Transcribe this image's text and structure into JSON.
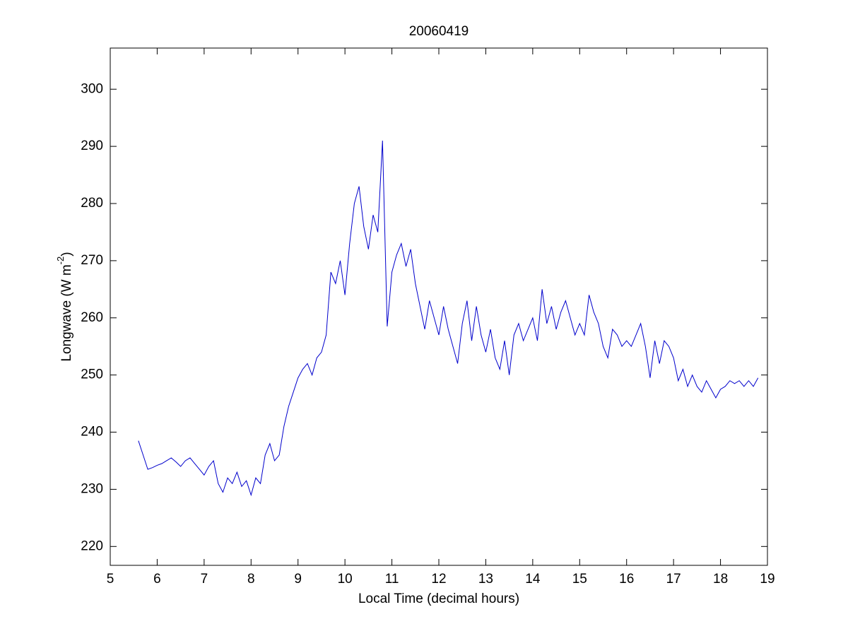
{
  "chart_data": {
    "type": "line",
    "title": "20060419",
    "x_label": "Local Time (decimal hours)",
    "y_label": [
      "Longwave (W m",
      "-2",
      ")"
    ],
    "color": "#0000cc",
    "xlim": [
      5,
      19
    ],
    "xticks": [
      5,
      6,
      7,
      8,
      9,
      10,
      11,
      12,
      13,
      14,
      15,
      16,
      17,
      18,
      19
    ],
    "ylim": [
      216.7,
      307.2
    ],
    "yticks": [
      220,
      230,
      240,
      250,
      260,
      270,
      280,
      290,
      300
    ],
    "x": [
      5.6,
      5.7,
      5.8,
      5.9,
      6.0,
      6.1,
      6.2,
      6.3,
      6.4,
      6.5,
      6.6,
      6.7,
      6.8,
      6.9,
      7.0,
      7.1,
      7.2,
      7.3,
      7.4,
      7.5,
      7.6,
      7.7,
      7.8,
      7.9,
      8.0,
      8.1,
      8.2,
      8.3,
      8.4,
      8.5,
      8.6,
      8.7,
      8.8,
      8.9,
      9.0,
      9.1,
      9.2,
      9.3,
      9.4,
      9.5,
      9.6,
      9.7,
      9.8,
      9.9,
      10.0,
      10.1,
      10.2,
      10.3,
      10.4,
      10.5,
      10.6,
      10.7,
      10.8,
      10.9,
      11.0,
      11.1,
      11.2,
      11.3,
      11.4,
      11.5,
      11.6,
      11.7,
      11.8,
      11.9,
      12.0,
      12.1,
      12.2,
      12.3,
      12.4,
      12.5,
      12.6,
      12.7,
      12.8,
      12.9,
      13.0,
      13.1,
      13.2,
      13.3,
      13.4,
      13.5,
      13.6,
      13.7,
      13.8,
      13.9,
      14.0,
      14.1,
      14.2,
      14.3,
      14.4,
      14.5,
      14.6,
      14.7,
      14.8,
      14.9,
      15.0,
      15.1,
      15.2,
      15.3,
      15.4,
      15.5,
      15.6,
      15.7,
      15.8,
      15.9,
      16.0,
      16.1,
      16.2,
      16.3,
      16.4,
      16.5,
      16.6,
      16.7,
      16.8,
      16.9,
      17.0,
      17.1,
      17.2,
      17.3,
      17.4,
      17.5,
      17.6,
      17.7,
      17.8,
      17.9,
      18.0,
      18.1,
      18.2,
      18.3,
      18.4,
      18.5,
      18.6,
      18.7,
      18.8
    ],
    "values": [
      238.5,
      236,
      233.5,
      233.8,
      234.2,
      234.5,
      235,
      235.5,
      234.8,
      234,
      235,
      235.5,
      234.5,
      233.5,
      232.5,
      234,
      235,
      231,
      229.5,
      232,
      231,
      233,
      230.5,
      231.5,
      229,
      232,
      231,
      236,
      238,
      235,
      236,
      241,
      244.5,
      247,
      249.5,
      251,
      252,
      250,
      253,
      254,
      257,
      268,
      266,
      270,
      264,
      273,
      280,
      283,
      276,
      272,
      278,
      275,
      291,
      258.5,
      268,
      271,
      273,
      269,
      272,
      266,
      262,
      258,
      263,
      260,
      257,
      262,
      258,
      255,
      252,
      259,
      263,
      256,
      262,
      257,
      254,
      258,
      253,
      251,
      256,
      250,
      257,
      259,
      256,
      258,
      260,
      256,
      265,
      259,
      262,
      258,
      261,
      263,
      260,
      257,
      259,
      257,
      264,
      261,
      259,
      255,
      253,
      258,
      257,
      255,
      256,
      255,
      257,
      259,
      255,
      249.5,
      256,
      252,
      256,
      255,
      253,
      249,
      251,
      248,
      250,
      248,
      247,
      249,
      247.5,
      246,
      247.5,
      248,
      249,
      248.5,
      249,
      248,
      249,
      248,
      249.5
    ]
  }
}
